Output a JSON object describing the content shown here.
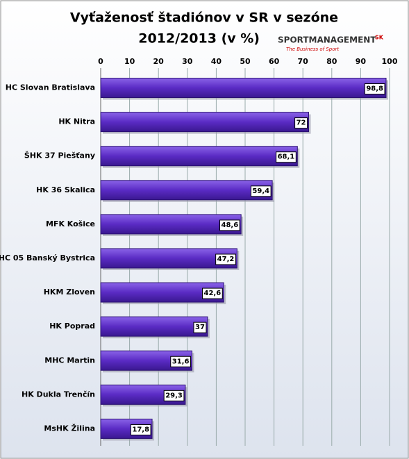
{
  "chart_data": {
    "type": "bar",
    "orientation": "horizontal",
    "title": [
      "Vyťaženosť štadiónov v SR v sezóne",
      "2012/2013 (v %)"
    ],
    "logo": {
      "text": "SPORTMANAGEMENT",
      "suffix": "SK",
      "tagline": "The Business of Sport"
    },
    "categories": [
      "HC Slovan Bratislava",
      "HK Nitra",
      "ŠHK 37 Piešťany",
      "HK 36 Skalica",
      "MFK Košice",
      "HC 05 Banský Bystrica",
      "HKM Zloven",
      "HK Poprad",
      "MHC Martin",
      "HK Dukla Trenčín",
      "MsHK Žilina"
    ],
    "values": [
      98.8,
      72,
      68.1,
      59.4,
      48.6,
      47.2,
      42.6,
      37,
      31.6,
      29.3,
      17.8
    ],
    "value_labels": [
      "98,8",
      "72",
      "68,1",
      "59,4",
      "48,6",
      "47,2",
      "42,6",
      "37",
      "31,6",
      "29,3",
      "17,8"
    ],
    "color": "#5a2bc4",
    "xlim": [
      0,
      100
    ],
    "xticks": [
      0,
      10,
      20,
      30,
      40,
      50,
      60,
      70,
      80,
      90,
      100
    ],
    "grid": true
  }
}
